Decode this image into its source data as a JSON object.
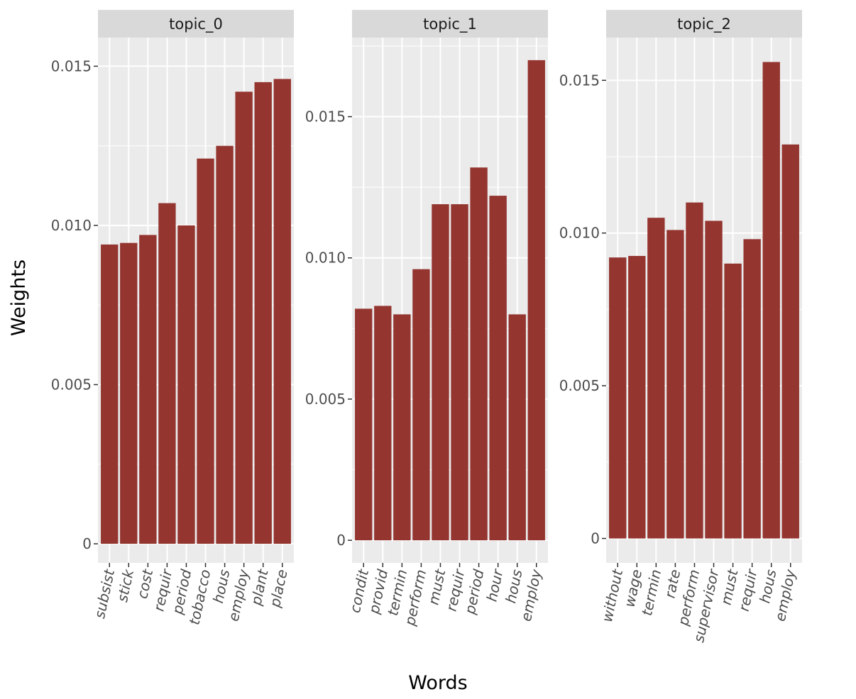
{
  "chart_data": [
    {
      "type": "bar",
      "panel": "topic_0",
      "categories": [
        "subsist",
        "stick",
        "cost",
        "requir",
        "period",
        "tobacco",
        "hous",
        "employ",
        "plant",
        "place"
      ],
      "values": [
        0.0094,
        0.00945,
        0.0097,
        0.0107,
        0.01,
        0.0121,
        0.0125,
        0.0142,
        0.0145,
        0.0146
      ],
      "ylim": [
        -0.0006,
        0.0159
      ],
      "yticks": [
        0,
        0.005,
        0.01,
        0.015
      ],
      "ytick_labels": [
        "0",
        "0.005",
        "0.010",
        "0.015"
      ]
    },
    {
      "type": "bar",
      "panel": "topic_1",
      "categories": [
        "condit",
        "provid",
        "termin",
        "perform",
        "must",
        "requir",
        "period",
        "hour",
        "hous",
        "employ"
      ],
      "values": [
        0.0082,
        0.0083,
        0.008,
        0.0096,
        0.0119,
        0.0119,
        0.0132,
        0.0122,
        0.008,
        0.017
      ],
      "ylim": [
        -0.0008,
        0.0178
      ],
      "yticks": [
        0,
        0.005,
        0.01,
        0.015
      ],
      "ytick_labels": [
        "0",
        "0.005",
        "0.010",
        "0.015"
      ]
    },
    {
      "type": "bar",
      "panel": "topic_2",
      "categories": [
        "without",
        "wage",
        "termin",
        "rate",
        "perform",
        "supervisor",
        "must",
        "requir",
        "hous",
        "employ"
      ],
      "values": [
        0.0092,
        0.00925,
        0.0105,
        0.0101,
        0.011,
        0.0104,
        0.009,
        0.0098,
        0.0156,
        0.0129
      ],
      "ylim": [
        -0.0008,
        0.0164
      ],
      "yticks": [
        0,
        0.005,
        0.01,
        0.015
      ],
      "ytick_labels": [
        "0",
        "0.005",
        "0.010",
        "0.015"
      ]
    }
  ],
  "xlabel": "Words",
  "ylabel": "Weights",
  "colors": {
    "bar": "#943530",
    "panel_bg": "#ebebeb",
    "strip_bg": "#d9d9d9",
    "grid": "#ffffff"
  }
}
